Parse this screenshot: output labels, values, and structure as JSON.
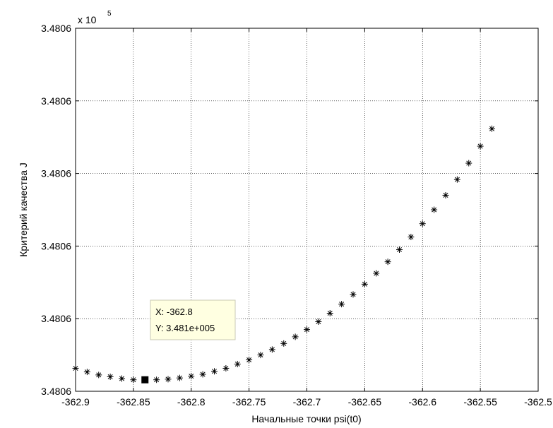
{
  "chart_data": {
    "type": "scatter",
    "title": "",
    "xlabel": "Начальные точки psi(t0)",
    "ylabel": "Критерий качества  J",
    "xlim": [
      -362.9,
      -362.5
    ],
    "xticks": [
      -362.9,
      -362.85,
      -362.8,
      -362.75,
      -362.7,
      -362.65,
      -362.6,
      -362.55,
      -362.5
    ],
    "xtick_labels": [
      "-362.9",
      "-362.85",
      "-362.8",
      "-362.75",
      "-362.7",
      "-362.65",
      "-362.6",
      "-362.55",
      "-362.5"
    ],
    "ylim": [
      348060.0,
      348060.6
    ],
    "yticks": [
      348060.0,
      348060.12,
      348060.24,
      348060.36,
      348060.48,
      348060.6
    ],
    "ytick_labels": [
      "3.4806",
      "3.4806",
      "3.4806",
      "3.4806",
      "3.4806",
      "3.4806"
    ],
    "yexponent": {
      "base": "x 10",
      "power": "5"
    },
    "grid": true,
    "marker": "*",
    "series": [
      {
        "name": "",
        "x": [
          -362.9,
          -362.89,
          -362.88,
          -362.87,
          -362.86,
          -362.85,
          -362.84,
          -362.83,
          -362.82,
          -362.81,
          -362.8,
          -362.79,
          -362.78,
          -362.77,
          -362.76,
          -362.75,
          -362.74,
          -362.73,
          -362.72,
          -362.71,
          -362.7,
          -362.69,
          -362.68,
          -362.67,
          -362.66,
          -362.65,
          -362.64,
          -362.63,
          -362.62,
          -362.61,
          -362.6,
          -362.59,
          -362.58,
          -362.57,
          -362.56,
          -362.55,
          -362.54
        ],
        "y": [
          348060.038,
          348060.032,
          348060.027,
          348060.024,
          348060.021,
          348060.019,
          348060.019,
          348060.019,
          348060.02,
          348060.022,
          348060.025,
          348060.028,
          348060.033,
          348060.038,
          348060.045,
          348060.052,
          348060.06,
          348060.069,
          348060.079,
          348060.09,
          348060.102,
          348060.115,
          348060.129,
          348060.144,
          348060.16,
          348060.177,
          348060.195,
          348060.214,
          348060.234,
          348060.255,
          348060.277,
          348060.3,
          348060.324,
          348060.35,
          348060.377,
          348060.405,
          348060.434
        ]
      }
    ],
    "datatip": {
      "x": -362.84,
      "y": 348060.019,
      "line1": "X: -362.8",
      "line2": "Y: 3.481e+005"
    }
  }
}
